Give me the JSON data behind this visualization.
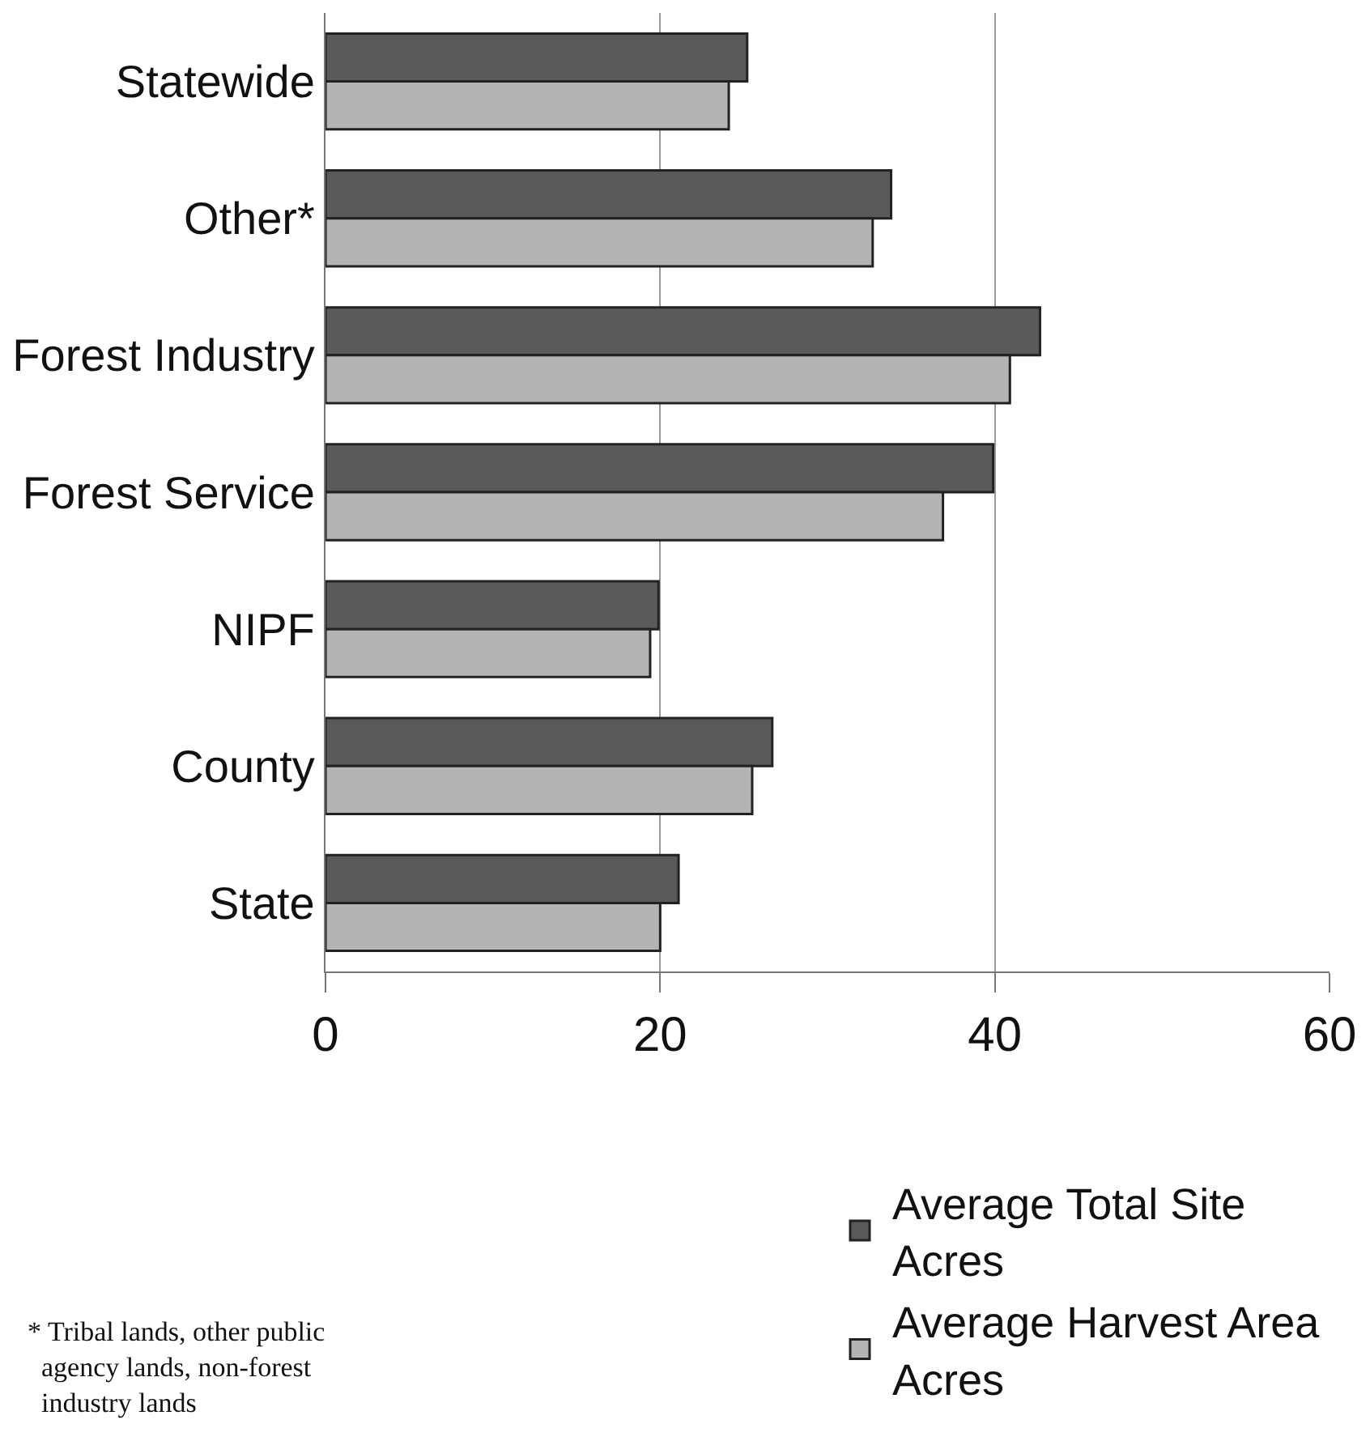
{
  "chart_data": {
    "type": "bar",
    "orientation": "horizontal",
    "categories": [
      "Statewide",
      "Other*",
      "Forest Industry",
      "Forest Service",
      "NIPF",
      "County",
      "State"
    ],
    "series": [
      {
        "name": "Average Total Site Acres",
        "color": "#5a5a5a",
        "values": [
          25.2,
          33.8,
          42.7,
          39.9,
          19.9,
          26.7,
          21.1
        ]
      },
      {
        "name": "Average Harvest Area Acres",
        "color": "#b4b4b4",
        "values": [
          24.1,
          32.7,
          40.9,
          36.9,
          19.4,
          25.5,
          20.0
        ]
      }
    ],
    "xlim": [
      0,
      60
    ],
    "xticks": [
      0,
      20,
      40,
      60
    ],
    "grid": "x",
    "legend": "bottom right",
    "annotations": [
      "* Tribal lands, other public agency lands, non-forest industry lands"
    ]
  }
}
